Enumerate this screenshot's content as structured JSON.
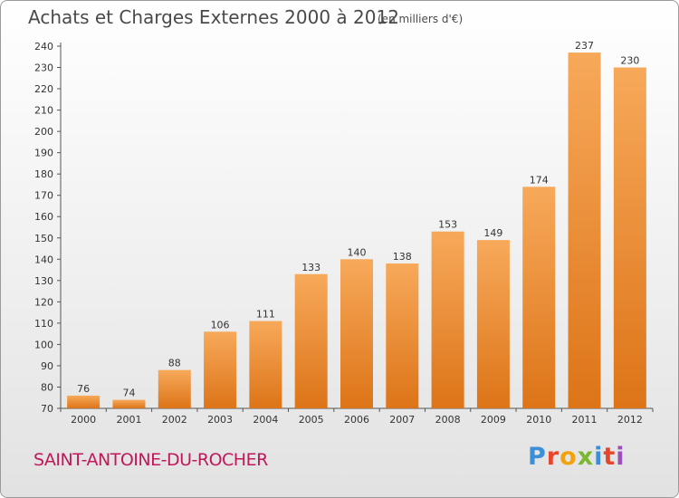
{
  "header": {
    "title": "Achats et Charges Externes 2000 à 2012",
    "unit": "(en milliers d'€)"
  },
  "footer": {
    "commune": "SAINT-ANTOINE-DU-ROCHER",
    "brand": "Proxiti",
    "brand_colors": [
      "#3c8fd6",
      "#e8462c",
      "#f2a20c",
      "#7cb82f",
      "#3c8fd6",
      "#e8462c",
      "#9b4fb8"
    ]
  },
  "colors": {
    "bar_light": "#f7a95a",
    "bar_dark": "#dd7418",
    "commune": "#c0185a",
    "text": "#4a4a4a"
  },
  "chart_data": {
    "type": "bar",
    "title": "Achats et Charges Externes 2000 à 2012",
    "subtitle": "(en milliers d'€)",
    "categories": [
      "2000",
      "2001",
      "2002",
      "2003",
      "2004",
      "2005",
      "2006",
      "2007",
      "2008",
      "2009",
      "2010",
      "2011",
      "2012"
    ],
    "values": [
      76,
      74,
      88,
      106,
      111,
      133,
      140,
      138,
      153,
      149,
      174,
      237,
      230
    ],
    "ylim": [
      70,
      240
    ],
    "yticks": [
      70,
      80,
      90,
      100,
      110,
      120,
      130,
      140,
      150,
      160,
      170,
      180,
      190,
      200,
      210,
      220,
      230,
      240
    ],
    "grid": false,
    "data_labels": true
  }
}
